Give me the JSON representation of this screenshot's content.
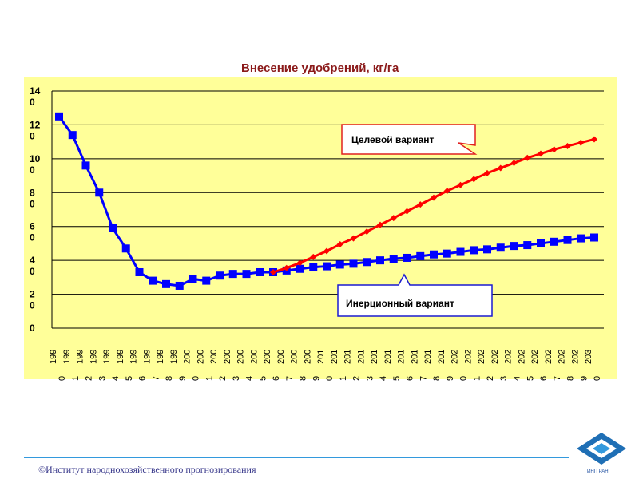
{
  "chart_data": {
    "type": "line",
    "title": "Внесение удобрений, кг/га",
    "xlabel": "",
    "ylabel": "",
    "ylim": [
      0,
      140
    ],
    "yticks": [
      "14\n0",
      "12\n0",
      "10\n0",
      "8\n0",
      "6\n0",
      "4\n0",
      "2\n0",
      "0"
    ],
    "ytick_values": [
      140,
      120,
      100,
      80,
      60,
      40,
      20,
      0
    ],
    "grid": true,
    "legend": "callouts",
    "x": [
      1990,
      1991,
      1992,
      1993,
      1994,
      1995,
      1996,
      1997,
      1998,
      1999,
      2000,
      2001,
      2002,
      2003,
      2004,
      2005,
      2006,
      2007,
      2008,
      2009,
      2010,
      2011,
      2012,
      2013,
      2014,
      2015,
      2016,
      2017,
      2018,
      2019,
      2020,
      2021,
      2022,
      2023,
      2024,
      2025,
      2026,
      2027,
      2028,
      2029,
      2030
    ],
    "xtick_labels": [
      "199\n0",
      "199\n1",
      "199\n2",
      "199\n3",
      "199\n4",
      "199\n5",
      "199\n6",
      "199\n7",
      "199\n8",
      "199\n9",
      "200\n0",
      "200\n1",
      "200\n2",
      "200\n3",
      "200\n4",
      "200\n5",
      "200\n6",
      "200\n7",
      "200\n8",
      "200\n9",
      "201\n0",
      "201\n1",
      "201\n2",
      "201\n3",
      "201\n4",
      "201\n5",
      "201\n6",
      "201\n7",
      "201\n8",
      "201\n9",
      "202\n0",
      "202\n1",
      "202\n2",
      "202\n3",
      "202\n4",
      "202\n5",
      "202\n6",
      "202\n7",
      "202\n8",
      "202\n9",
      "203\n0"
    ],
    "series": [
      {
        "name": "Инерционный вариант",
        "color": "#0000ff",
        "marker": "square",
        "values": [
          125,
          114,
          96,
          80,
          59,
          47,
          33,
          28,
          26,
          25,
          29,
          28,
          31,
          32,
          32,
          33,
          33,
          34,
          35,
          36,
          36.5,
          37.5,
          38,
          39,
          40,
          41,
          41.5,
          42.5,
          43.5,
          44,
          45,
          46,
          46.5,
          47.5,
          48.5,
          49,
          50,
          51,
          52,
          53,
          53.5
        ]
      },
      {
        "name": "Целевой вариант",
        "color": "#ff0000",
        "marker": "diamond",
        "start_index": 16,
        "values": [
          null,
          null,
          null,
          null,
          null,
          null,
          null,
          null,
          null,
          null,
          null,
          null,
          null,
          null,
          null,
          null,
          33,
          35.5,
          38.5,
          42,
          45.5,
          49.5,
          53,
          57,
          61,
          65,
          69,
          73,
          77,
          81,
          84.5,
          88,
          91.5,
          94.5,
          97.5,
          100.5,
          103,
          105.5,
          107.5,
          109.5,
          111.5
        ]
      }
    ]
  },
  "callouts": {
    "target": "Целевой вариант",
    "inertial": "Инерционный вариант"
  },
  "footer": {
    "text": "©Институт народнохозяйственного прогнозирования"
  },
  "logo": {
    "caption": "ИНП РАН",
    "colors": [
      "#1f6fb5",
      "#3399dd"
    ]
  }
}
